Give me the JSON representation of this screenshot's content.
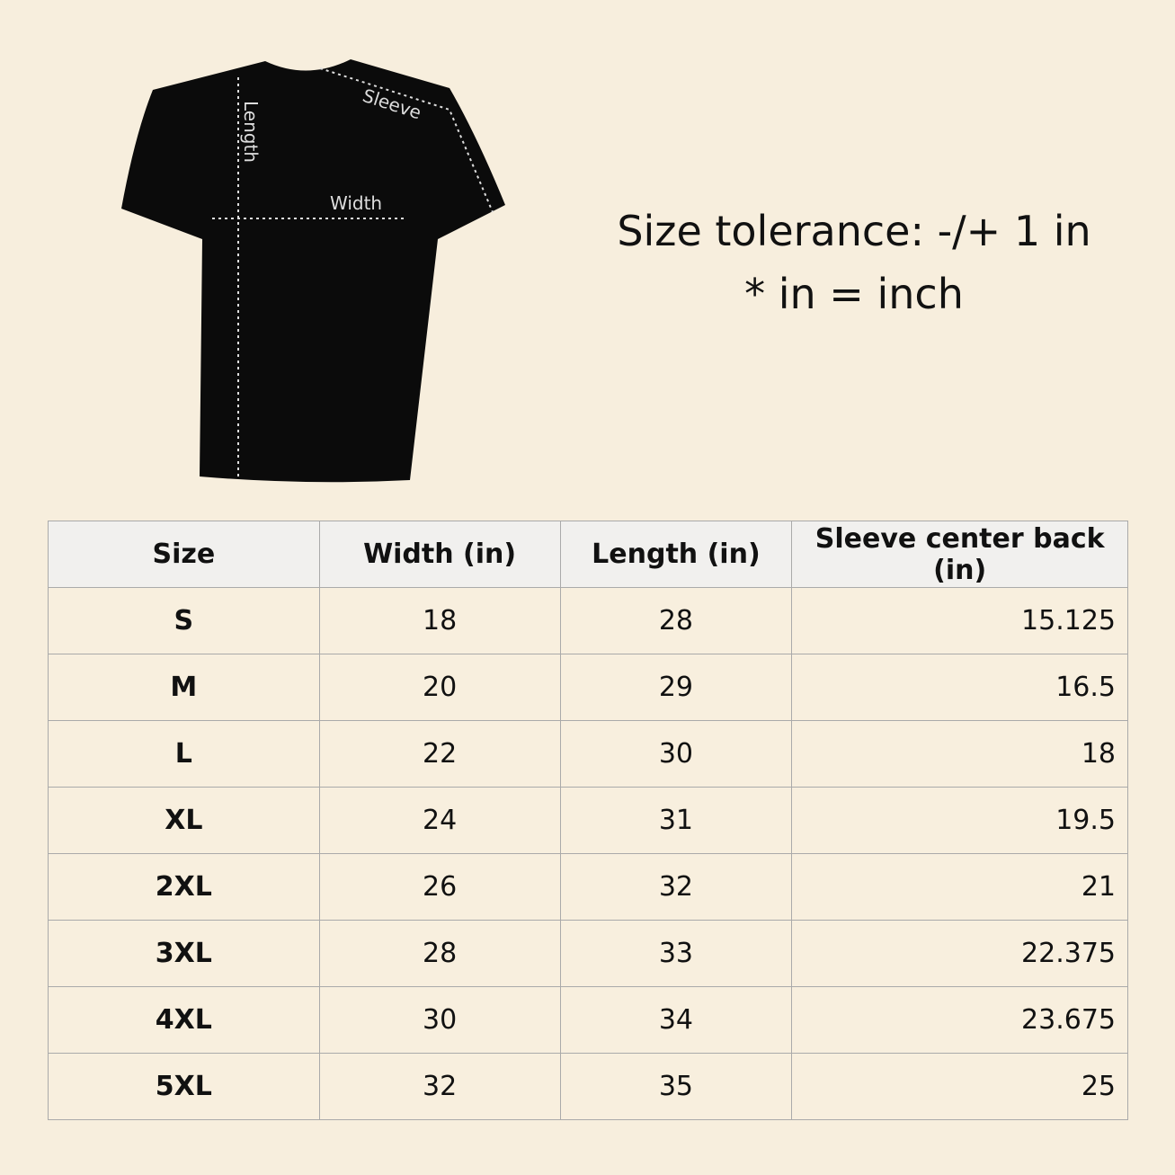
{
  "diagram": {
    "length": "Length",
    "width": "Width",
    "sleeve": "Sleeve"
  },
  "notes": [
    "Size tolerance: -/+ 1 in",
    "* in = inch"
  ],
  "table": {
    "header": [
      "Size",
      "Width (in)",
      "Length (in)",
      "Sleeve center back (in)"
    ],
    "rows": [
      [
        "S",
        "18",
        "28",
        "15.125"
      ],
      [
        "M",
        "20",
        "29",
        "16.5"
      ],
      [
        "L",
        "22",
        "30",
        "18"
      ],
      [
        "XL",
        "24",
        "31",
        "19.5"
      ],
      [
        "2XL",
        "26",
        "32",
        "21"
      ],
      [
        "3XL",
        "28",
        "33",
        "22.375"
      ],
      [
        "4XL",
        "30",
        "34",
        "23.675"
      ],
      [
        "5XL",
        "32",
        "35",
        "25"
      ]
    ]
  }
}
